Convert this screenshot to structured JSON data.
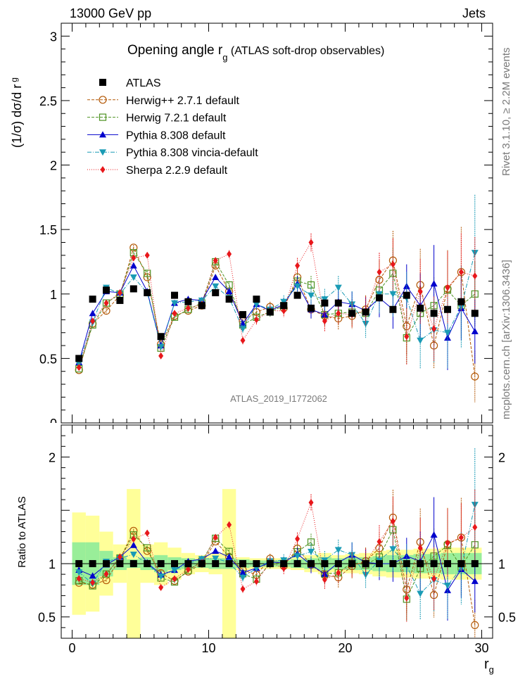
{
  "header": {
    "left": "13000 GeV pp",
    "right": "Jets"
  },
  "side_labels": {
    "rivet": "Rivet 3.1.10, ≥ 2.2M events",
    "mcplots": "mcplots.cern.ch [arXiv:1306.3436]"
  },
  "chart_data": {
    "type": "line",
    "title_main": "Opening angle r",
    "title_sub": "g",
    "title_rest": " (ATLAS soft-drop observables)",
    "watermark": "ATLAS_2019_I1772062",
    "ylabel_top": "(1/σ) dσ/d r",
    "ylabel_top_sub": "g",
    "ylabel_ratio": "Ratio to ATLAS",
    "xlabel": "r",
    "xlabel_sub": "g",
    "xlim": [
      -0.8,
      30.8
    ],
    "ylim_top": [
      0,
      3.1
    ],
    "ylim_ratio": [
      0.3,
      2.3
    ],
    "x_ticks": [
      "0",
      "10",
      "20",
      "30"
    ],
    "y_ticks_top": [
      "0.5",
      "1",
      "1.5",
      "2",
      "2.5",
      "3"
    ],
    "y_ticks_top_partial": "0",
    "y_ticks_ratio": [
      "0.5",
      "1",
      "2"
    ],
    "x": [
      0.5,
      1.5,
      2.5,
      3.5,
      4.5,
      5.5,
      6.5,
      7.5,
      8.5,
      9.5,
      10.5,
      11.5,
      12.5,
      13.5,
      14.5,
      15.5,
      16.5,
      17.5,
      18.5,
      19.5,
      20.5,
      21.5,
      22.5,
      23.5,
      24.5,
      25.5,
      26.5,
      27.5,
      28.5,
      29.5
    ],
    "band_inner": [
      0.2,
      0.2,
      0.12,
      0.06,
      0.04,
      0.06,
      0.08,
      0.06,
      0.05,
      0.04,
      0.05,
      0.05,
      0.04,
      0.03,
      0.03,
      0.03,
      0.04,
      0.05,
      0.06,
      0.05,
      0.06,
      0.06,
      0.07,
      0.08,
      0.08,
      0.09,
      0.09,
      0.1,
      0.1,
      0.1
    ],
    "band_outer": [
      0.48,
      0.45,
      0.3,
      0.18,
      0.7,
      0.18,
      0.2,
      0.15,
      0.1,
      0.08,
      0.1,
      0.7,
      0.06,
      0.05,
      0.05,
      0.05,
      0.06,
      0.08,
      0.1,
      0.08,
      0.09,
      0.1,
      0.12,
      0.13,
      0.13,
      0.14,
      0.14,
      0.15,
      0.15,
      0.15
    ],
    "series": [
      {
        "name": "ATLAS",
        "color": "#000000",
        "marker": "square",
        "dash": "none",
        "values": [
          0.5,
          0.96,
          1.03,
          0.95,
          1.04,
          1.01,
          0.67,
          0.99,
          0.94,
          0.91,
          1.01,
          0.96,
          0.84,
          0.96,
          0.86,
          0.91,
          0.99,
          0.89,
          0.93,
          0.93,
          0.85,
          0.86,
          0.97,
          0.88,
          0.99,
          0.89,
          0.85,
          0.88,
          0.94,
          0.85
        ],
        "errors": [
          0.01,
          0.01,
          0.01,
          0.01,
          0.01,
          0.01,
          0.01,
          0.01,
          0.01,
          0.01,
          0.01,
          0.01,
          0.01,
          0.01,
          0.01,
          0.01,
          0.01,
          0.01,
          0.01,
          0.01,
          0.01,
          0.01,
          0.01,
          0.01,
          0.01,
          0.01,
          0.01,
          0.01,
          0.01,
          0.01
        ]
      },
      {
        "name": "Herwig++ 2.7.1 default",
        "color": "#b35806",
        "marker": "circle",
        "dash": "4,2",
        "values": [
          0.41,
          0.77,
          0.87,
          0.99,
          1.36,
          1.13,
          0.61,
          0.83,
          0.87,
          0.91,
          1.22,
          1.02,
          0.79,
          0.86,
          0.9,
          0.89,
          1.13,
          0.88,
          0.83,
          0.81,
          0.83,
          0.88,
          1.11,
          1.26,
          0.75,
          1.07,
          0.6,
          1.04,
          1.17,
          0.36
        ],
        "errors": [
          0.01,
          0.02,
          0.02,
          0.02,
          0.02,
          0.02,
          0.02,
          0.02,
          0.02,
          0.02,
          0.02,
          0.03,
          0.03,
          0.04,
          0.04,
          0.05,
          0.06,
          0.07,
          0.08,
          0.09,
          0.1,
          0.11,
          0.15,
          0.23,
          0.22,
          0.28,
          0.18,
          0.3,
          0.35,
          0.2
        ]
      },
      {
        "name": "Herwig 7.2.1 default",
        "color": "#4d9221",
        "marker": "open-square",
        "dash": "4,2",
        "values": [
          0.42,
          0.76,
          0.93,
          1.0,
          1.32,
          1.16,
          0.58,
          0.82,
          0.88,
          0.93,
          1.25,
          1.07,
          0.76,
          0.82,
          0.86,
          0.91,
          1.1,
          1.07,
          0.84,
          0.85,
          0.86,
          0.85,
          1.03,
          1.16,
          0.66,
          0.85,
          0.91,
          1.03,
          0.91,
          1.0
        ],
        "errors": [
          0.01,
          0.02,
          0.02,
          0.02,
          0.02,
          0.02,
          0.02,
          0.02,
          0.02,
          0.02,
          0.02,
          0.03,
          0.03,
          0.04,
          0.04,
          0.05,
          0.06,
          0.07,
          0.08,
          0.09,
          0.1,
          0.11,
          0.15,
          0.2,
          0.2,
          0.22,
          0.22,
          0.25,
          0.25,
          0.25
        ]
      },
      {
        "name": "Pythia 8.308 default",
        "color": "#0000cc",
        "marker": "triangle-up",
        "dash": "none",
        "values": [
          0.47,
          0.85,
          1.02,
          1.01,
          1.22,
          1.02,
          0.6,
          0.93,
          0.96,
          0.95,
          1.13,
          1.02,
          0.77,
          0.92,
          0.87,
          0.92,
          1.08,
          0.88,
          0.84,
          0.94,
          0.92,
          0.87,
          0.97,
          0.88,
          1.06,
          0.91,
          1.08,
          0.66,
          0.89,
          0.71
        ],
        "errors": [
          0.01,
          0.02,
          0.02,
          0.02,
          0.02,
          0.02,
          0.02,
          0.02,
          0.02,
          0.02,
          0.02,
          0.03,
          0.03,
          0.04,
          0.04,
          0.05,
          0.06,
          0.07,
          0.08,
          0.09,
          0.1,
          0.11,
          0.15,
          0.15,
          0.17,
          0.25,
          0.3,
          0.25,
          0.25,
          0.25
        ]
      },
      {
        "name": "Pythia 8.308 vincia-default",
        "color": "#1a9bb5",
        "marker": "triangle-down",
        "dash": "6,2,1,2",
        "values": [
          0.46,
          0.78,
          1.05,
          1.0,
          1.13,
          1.01,
          0.59,
          0.93,
          0.94,
          0.95,
          1.06,
          0.97,
          0.73,
          0.92,
          0.88,
          0.94,
          1.06,
          0.99,
          0.96,
          1.05,
          0.92,
          0.77,
          1.0,
          1.0,
          0.97,
          0.64,
          0.72,
          0.7,
          0.9,
          1.32
        ],
        "errors": [
          0.01,
          0.02,
          0.02,
          0.02,
          0.02,
          0.02,
          0.02,
          0.02,
          0.02,
          0.02,
          0.02,
          0.03,
          0.03,
          0.04,
          0.04,
          0.05,
          0.06,
          0.07,
          0.08,
          0.09,
          0.1,
          0.11,
          0.15,
          0.18,
          0.2,
          0.22,
          0.25,
          0.28,
          0.32,
          0.45
        ]
      },
      {
        "name": "Sherpa 2.2.9 default",
        "color": "#e8171b",
        "marker": "diamond",
        "dash": "1,2",
        "values": [
          0.43,
          0.79,
          0.93,
          1.01,
          1.28,
          1.3,
          0.52,
          0.85,
          0.89,
          0.92,
          1.26,
          1.31,
          0.64,
          0.8,
          0.87,
          0.87,
          1.22,
          1.4,
          0.79,
          0.85,
          0.84,
          0.87,
          1.17,
          1.23,
          0.67,
          1.02,
          0.73,
          1.05,
          1.17,
          1.14
        ],
        "errors": [
          0.01,
          0.02,
          0.02,
          0.02,
          0.02,
          0.02,
          0.02,
          0.02,
          0.02,
          0.02,
          0.02,
          0.03,
          0.03,
          0.04,
          0.04,
          0.05,
          0.06,
          0.07,
          0.08,
          0.09,
          0.1,
          0.11,
          0.15,
          0.2,
          0.22,
          0.25,
          0.25,
          0.28,
          0.3,
          0.3
        ]
      }
    ],
    "grid": false,
    "legend_position": "top-left"
  }
}
